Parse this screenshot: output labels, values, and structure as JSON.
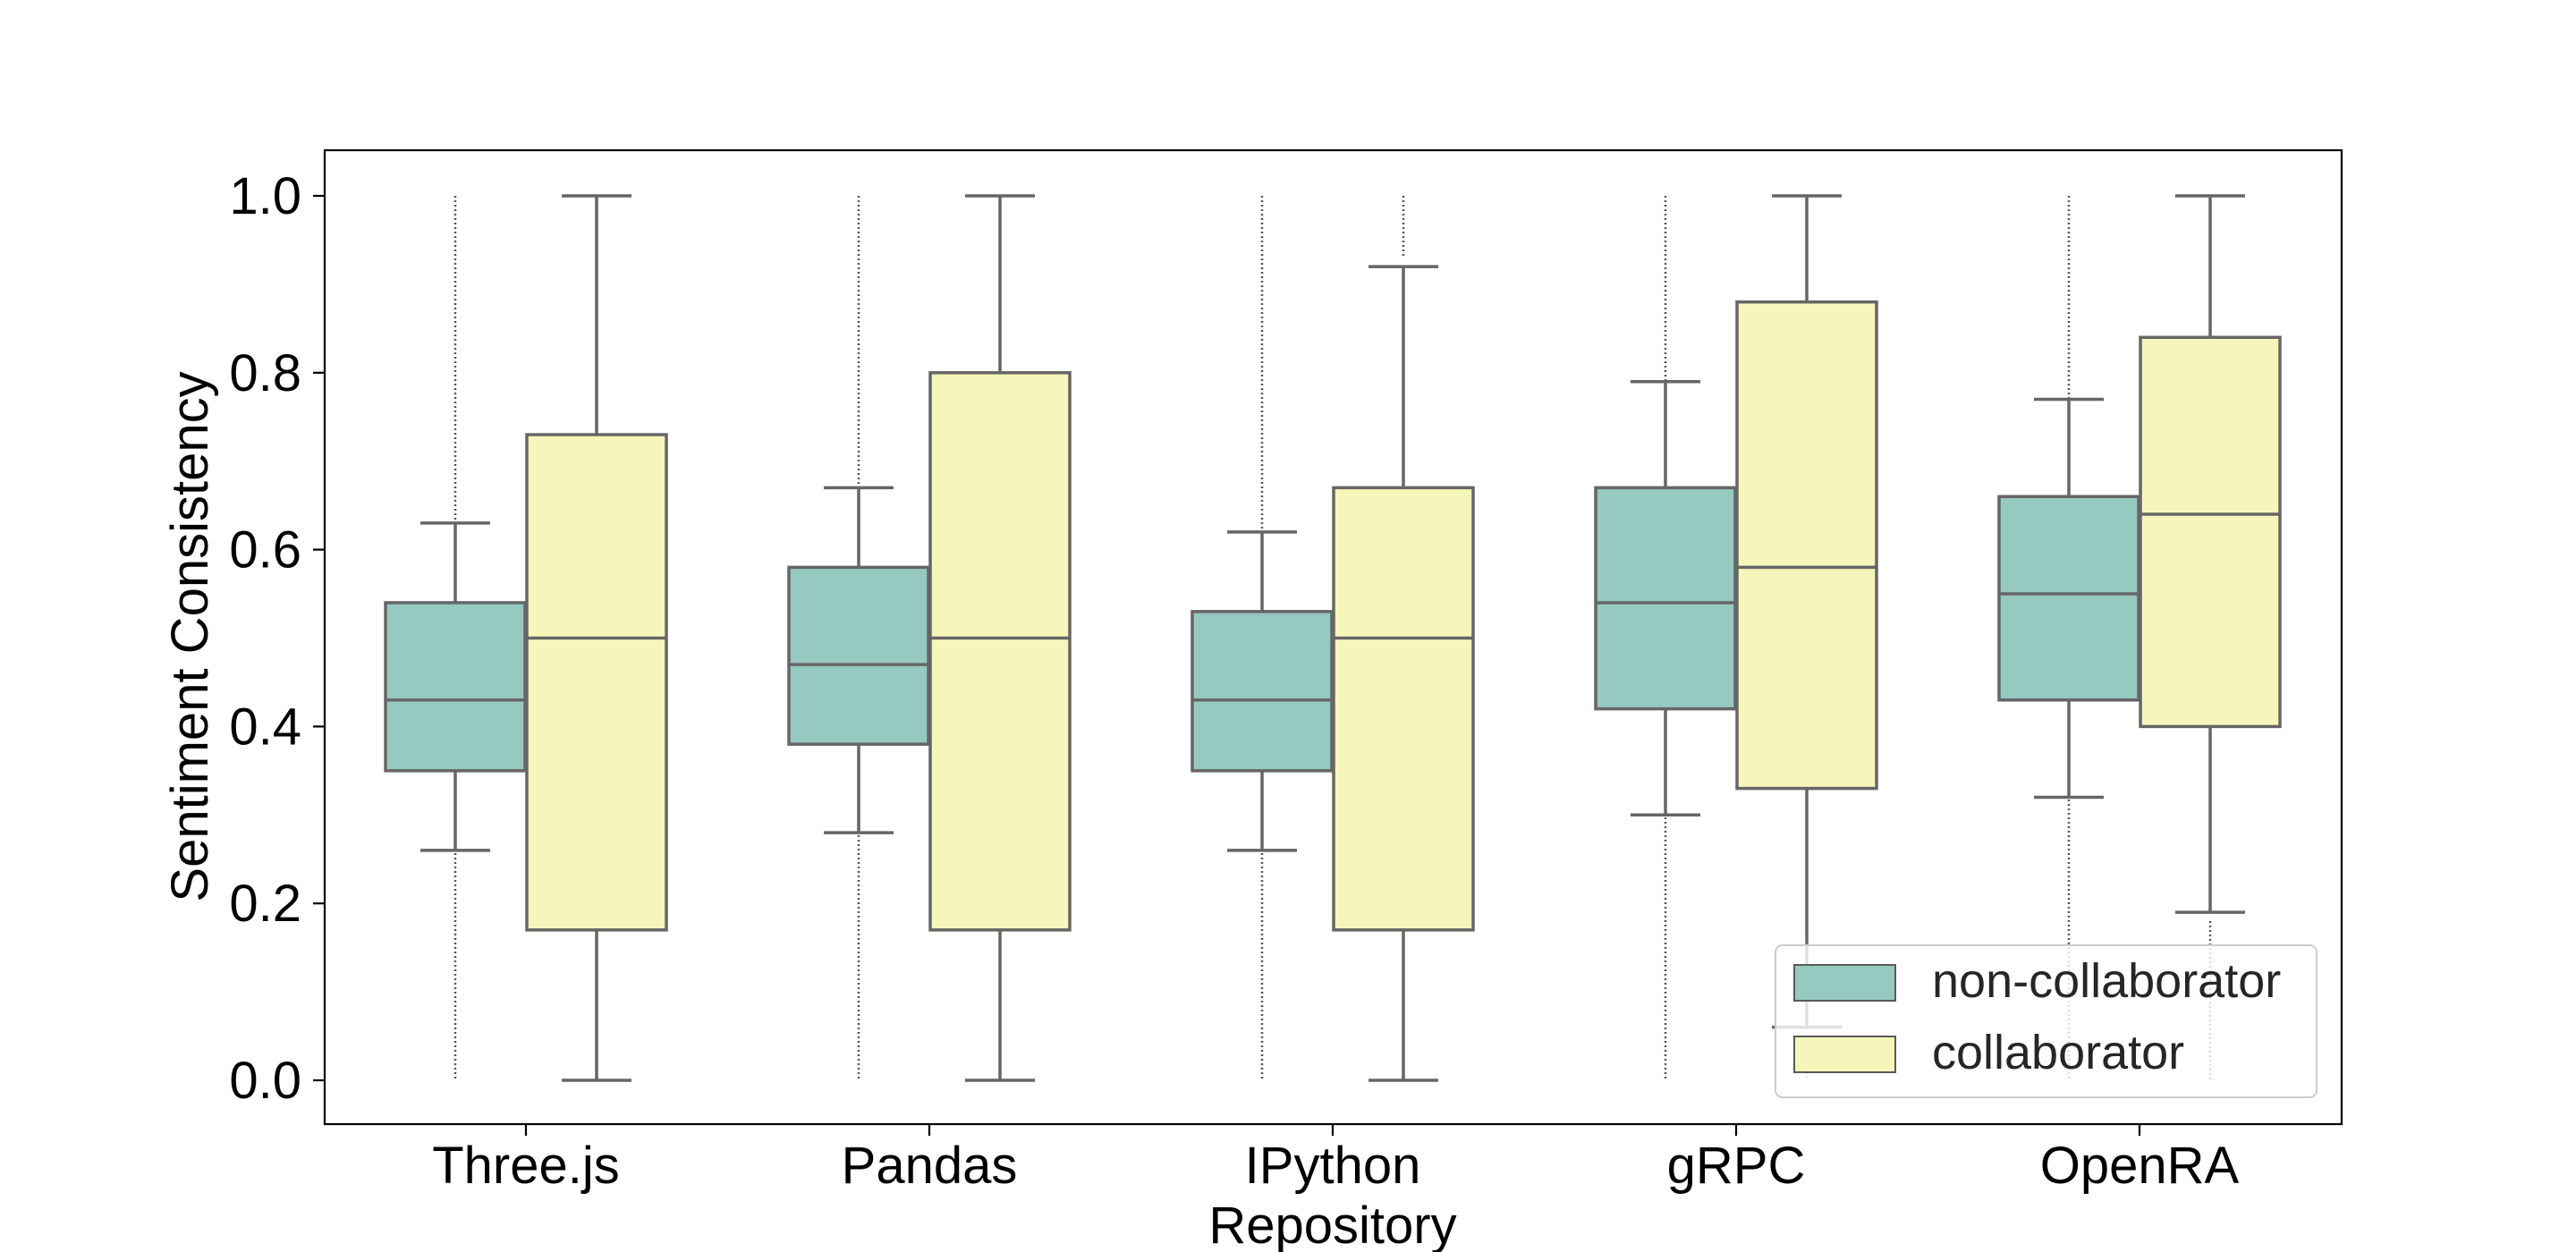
{
  "chart_data": {
    "type": "box",
    "xlabel": "Repository",
    "ylabel": "Sentiment Consistency",
    "ylim": [
      -0.05,
      1.05
    ],
    "yticks": [
      "0.0",
      "0.2",
      "0.4",
      "0.6",
      "0.8",
      "1.0"
    ],
    "categories": [
      "Three.js",
      "Pandas",
      "IPython",
      "gRPC",
      "OpenRA"
    ],
    "legend": {
      "placement": "lower-right"
    },
    "series": [
      {
        "name": "non-collaborator",
        "color": "#96c9bf",
        "boxes": [
          {
            "whislo": 0.26,
            "q1": 0.35,
            "med": 0.43,
            "q3": 0.54,
            "whishi": 0.63
          },
          {
            "whislo": 0.28,
            "q1": 0.38,
            "med": 0.47,
            "q3": 0.58,
            "whishi": 0.67
          },
          {
            "whislo": 0.26,
            "q1": 0.35,
            "med": 0.43,
            "q3": 0.53,
            "whishi": 0.62
          },
          {
            "whislo": 0.3,
            "q1": 0.42,
            "med": 0.54,
            "q3": 0.67,
            "whishi": 0.79
          },
          {
            "whislo": 0.32,
            "q1": 0.43,
            "med": 0.55,
            "q3": 0.66,
            "whishi": 0.77
          }
        ],
        "outlier_range": [
          [
            0.0,
            1.0
          ],
          [
            0.0,
            1.0
          ],
          [
            0.0,
            1.0
          ],
          [
            0.0,
            1.0
          ],
          [
            0.0,
            1.0
          ]
        ]
      },
      {
        "name": "collaborator",
        "color": "#f6f6ba",
        "boxes": [
          {
            "whislo": 0.0,
            "q1": 0.17,
            "med": 0.5,
            "q3": 0.73,
            "whishi": 1.0
          },
          {
            "whislo": 0.0,
            "q1": 0.17,
            "med": 0.5,
            "q3": 0.8,
            "whishi": 1.0
          },
          {
            "whislo": 0.0,
            "q1": 0.17,
            "med": 0.5,
            "q3": 0.67,
            "whishi": 0.92
          },
          {
            "whislo": 0.06,
            "q1": 0.33,
            "med": 0.58,
            "q3": 0.88,
            "whishi": 1.0
          },
          {
            "whislo": 0.19,
            "q1": 0.4,
            "med": 0.64,
            "q3": 0.84,
            "whishi": 1.0
          }
        ],
        "outlier_range": [
          null,
          null,
          [
            0.93,
            1.0
          ],
          [
            0.0,
            0.05
          ],
          [
            0.0,
            0.18
          ]
        ]
      }
    ]
  }
}
